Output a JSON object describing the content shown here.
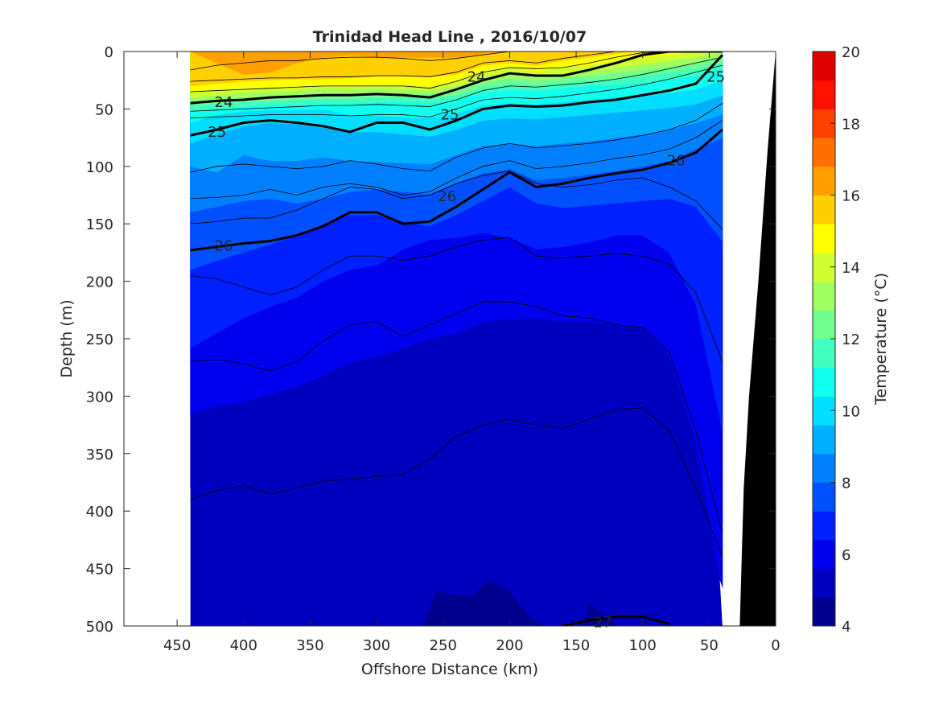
{
  "chart_data": {
    "type": "heatmap",
    "title": "Trinidad Head Line , 2016/10/07",
    "xlabel": "Offshore Distance (km)",
    "ylabel": "Depth (m)",
    "xlim": [
      490,
      0
    ],
    "ylim": [
      0,
      500
    ],
    "x_ticks": [
      450,
      400,
      350,
      300,
      250,
      200,
      150,
      100,
      50,
      0
    ],
    "y_ticks": [
      0,
      50,
      100,
      150,
      200,
      250,
      300,
      350,
      400,
      450,
      500
    ],
    "colorbar": {
      "label": "Temperature (°C)",
      "range": [
        4,
        20
      ],
      "ticks": [
        4,
        6,
        8,
        10,
        12,
        14,
        16,
        18,
        20
      ],
      "level_step": 1,
      "colors": [
        "#00008f",
        "#0000bf",
        "#0000ef",
        "#0020ff",
        "#0050ff",
        "#0080ff",
        "#00b0ff",
        "#00dfff",
        "#10ffef",
        "#40ffbf",
        "#70ff8f",
        "#9fff60",
        "#cfff30",
        "#ffff00",
        "#ffcf00",
        "#ff9f00",
        "#ff7000",
        "#ff4000",
        "#ff1000",
        "#df0000"
      ]
    },
    "section": {
      "distance_km": [
        440,
        420,
        400,
        380,
        360,
        340,
        320,
        300,
        280,
        260,
        240,
        220,
        200,
        180,
        160,
        140,
        120,
        100,
        80,
        60,
        40
      ],
      "isotherm_depths_m": {
        "19": [
          0,
          10,
          20,
          18,
          10,
          5,
          3,
          5,
          5,
          5,
          5,
          3,
          0,
          0,
          0,
          0,
          0,
          0,
          0,
          0,
          0
        ],
        "18": [
          30,
          28,
          26,
          25,
          24,
          24,
          23,
          22,
          22,
          22,
          20,
          12,
          10,
          12,
          8,
          5,
          2,
          0,
          0,
          0,
          0
        ],
        "17": [
          35,
          33,
          32,
          31,
          31,
          30,
          30,
          29,
          29,
          30,
          26,
          18,
          14,
          17,
          14,
          12,
          8,
          5,
          3,
          0,
          0
        ],
        "16": [
          40,
          38,
          36,
          35,
          34,
          33,
          33,
          32,
          33,
          34,
          30,
          23,
          19,
          21,
          19,
          17,
          14,
          11,
          8,
          5,
          0
        ],
        "15": [
          43,
          41,
          40,
          39,
          38,
          37,
          37,
          36,
          36,
          37,
          34,
          27,
          23,
          25,
          23,
          21,
          19,
          16,
          13,
          10,
          5
        ],
        "14": [
          47,
          45,
          44,
          43,
          42,
          41,
          41,
          40,
          40,
          41,
          38,
          31,
          28,
          29,
          27,
          25,
          24,
          21,
          18,
          15,
          10
        ],
        "13": [
          52,
          50,
          48,
          47,
          46,
          45,
          45,
          44,
          44,
          45,
          42,
          36,
          33,
          34,
          32,
          30,
          29,
          27,
          24,
          21,
          15
        ],
        "12": [
          62,
          55,
          52,
          51,
          51,
          50,
          55,
          56,
          57,
          58,
          54,
          47,
          45,
          46,
          44,
          42,
          40,
          38,
          36,
          33,
          25
        ],
        "11": [
          80,
          72,
          65,
          62,
          63,
          66,
          70,
          70,
          72,
          74,
          68,
          60,
          58,
          59,
          57,
          55,
          53,
          51,
          49,
          46,
          38
        ],
        "10": [
          100,
          105,
          90,
          95,
          95,
          92,
          95,
          96,
          97,
          98,
          90,
          82,
          80,
          82,
          80,
          78,
          75,
          72,
          68,
          62,
          55
        ],
        "9": [
          140,
          135,
          130,
          128,
          132,
          128,
          122,
          120,
          122,
          124,
          114,
          106,
          102,
          112,
          110,
          107,
          104,
          100,
          95,
          85,
          75
        ],
        "8": [
          190,
          182,
          175,
          168,
          160,
          150,
          142,
          142,
          148,
          152,
          142,
          130,
          118,
          132,
          136,
          134,
          132,
          130,
          128,
          135,
          165
        ],
        "7": [
          258,
          245,
          232,
          222,
          214,
          200,
          190,
          186,
          172,
          164,
          162,
          158,
          162,
          172,
          170,
          166,
          160,
          160,
          175,
          220,
          330
        ],
        "6": [
          315,
          308,
          305,
          298,
          292,
          282,
          270,
          266,
          258,
          250,
          245,
          235,
          233,
          232,
          235,
          235,
          238,
          240,
          265,
          340,
          470
        ],
        "5": [
          380,
          378,
          375,
          372,
          368,
          362,
          358,
          355,
          350,
          335,
          325,
          322,
          320,
          325,
          328,
          322,
          315,
          320,
          360,
          450,
          500
        ]
      },
      "extra_patches": [
        {
          "temp": 5,
          "points": [
            [
              265,
              500
            ],
            [
              255,
              470
            ],
            [
              230,
              475
            ],
            [
              215,
              460
            ],
            [
              200,
              470
            ],
            [
              185,
              492
            ],
            [
              175,
              500
            ]
          ]
        },
        {
          "temp": 5,
          "points": [
            [
              145,
              500
            ],
            [
              140,
              480
            ],
            [
              125,
              495
            ],
            [
              120,
              500
            ]
          ]
        }
      ]
    },
    "sigma_contours": [
      {
        "label": "24",
        "thick": true,
        "depths": [
          45,
          43,
          42,
          40,
          39,
          38,
          38,
          37,
          38,
          40,
          33,
          25,
          19,
          21,
          21,
          16,
          10,
          3,
          0,
          0,
          0
        ],
        "labels_at": [
          [
            415,
            44
          ],
          [
            225,
            22
          ]
        ]
      },
      {
        "label": "25",
        "thick": true,
        "depths": [
          73,
          68,
          62,
          60,
          62,
          65,
          70,
          62,
          62,
          68,
          60,
          50,
          47,
          48,
          47,
          44,
          42,
          38,
          34,
          28,
          3
        ],
        "labels_at": [
          [
            420,
            70
          ],
          [
            245,
            55
          ],
          [
            45,
            22
          ]
        ]
      },
      {
        "label": "26",
        "thick": true,
        "depths": [
          173,
          170,
          167,
          165,
          160,
          152,
          140,
          140,
          150,
          148,
          135,
          120,
          105,
          118,
          115,
          110,
          106,
          103,
          97,
          88,
          68
        ],
        "labels_at": [
          [
            415,
            169
          ],
          [
            247,
            126
          ],
          [
            75,
            95
          ]
        ]
      },
      {
        "label": "27",
        "thick": true,
        "depths": [
          null,
          null,
          null,
          null,
          null,
          null,
          null,
          null,
          null,
          null,
          null,
          null,
          null,
          null,
          500,
          495,
          492,
          492,
          498,
          null,
          null
        ],
        "labels_at": [
          [
            130,
            497
          ]
        ]
      }
    ],
    "sigma_thin_contours": [
      [
        16,
        12,
        10,
        8,
        8,
        6,
        5,
        5,
        6,
        8,
        6,
        3,
        0,
        0,
        0,
        0,
        0,
        0,
        0,
        0,
        0
      ],
      [
        26,
        25,
        24,
        23,
        23,
        22,
        22,
        21,
        21,
        22,
        18,
        10,
        8,
        10,
        6,
        3,
        0,
        0,
        0,
        0,
        0
      ],
      [
        35,
        34,
        33,
        32,
        31,
        30,
        30,
        30,
        30,
        32,
        26,
        18,
        14,
        15,
        14,
        10,
        5,
        1,
        0,
        0,
        0
      ],
      [
        52,
        51,
        50,
        49,
        48,
        47,
        47,
        46,
        47,
        48,
        42,
        34,
        30,
        31,
        29,
        27,
        24,
        20,
        15,
        10,
        5
      ],
      [
        58,
        57,
        56,
        55,
        55,
        55,
        56,
        55,
        55,
        57,
        50,
        42,
        40,
        41,
        39,
        36,
        33,
        29,
        24,
        18,
        12
      ],
      [
        105,
        100,
        98,
        100,
        102,
        100,
        95,
        98,
        102,
        104,
        92,
        84,
        80,
        84,
        82,
        80,
        77,
        73,
        68,
        60,
        45
      ],
      [
        128,
        127,
        125,
        120,
        125,
        118,
        115,
        118,
        125,
        122,
        110,
        100,
        95,
        102,
        100,
        97,
        93,
        90,
        85,
        75,
        60
      ],
      [
        150,
        148,
        145,
        145,
        138,
        128,
        118,
        120,
        128,
        125,
        115,
        108,
        104,
        115,
        118,
        116,
        112,
        110,
        118,
        130,
        155
      ],
      [
        195,
        198,
        205,
        212,
        205,
        190,
        178,
        178,
        182,
        178,
        170,
        164,
        162,
        178,
        180,
        178,
        176,
        178,
        185,
        210,
        270
      ],
      [
        270,
        268,
        272,
        278,
        270,
        252,
        238,
        235,
        248,
        238,
        228,
        218,
        218,
        222,
        230,
        232,
        238,
        240,
        262,
        330,
        420
      ],
      [
        390,
        382,
        378,
        385,
        380,
        374,
        372,
        370,
        368,
        355,
        335,
        325,
        320,
        325,
        328,
        320,
        312,
        310,
        330,
        380,
        440
      ]
    ],
    "land_polygon_km_m": [
      [
        0,
        0
      ],
      [
        6,
        85
      ],
      [
        13,
        200
      ],
      [
        20,
        300
      ],
      [
        24,
        380
      ],
      [
        27,
        500
      ],
      [
        0,
        500
      ]
    ],
    "bottom_notch_km_m": [
      [
        20,
        180
      ],
      [
        20,
        500
      ],
      [
        40,
        500
      ],
      [
        42,
        460
      ],
      [
        30,
        500
      ],
      [
        28,
        190
      ]
    ]
  }
}
